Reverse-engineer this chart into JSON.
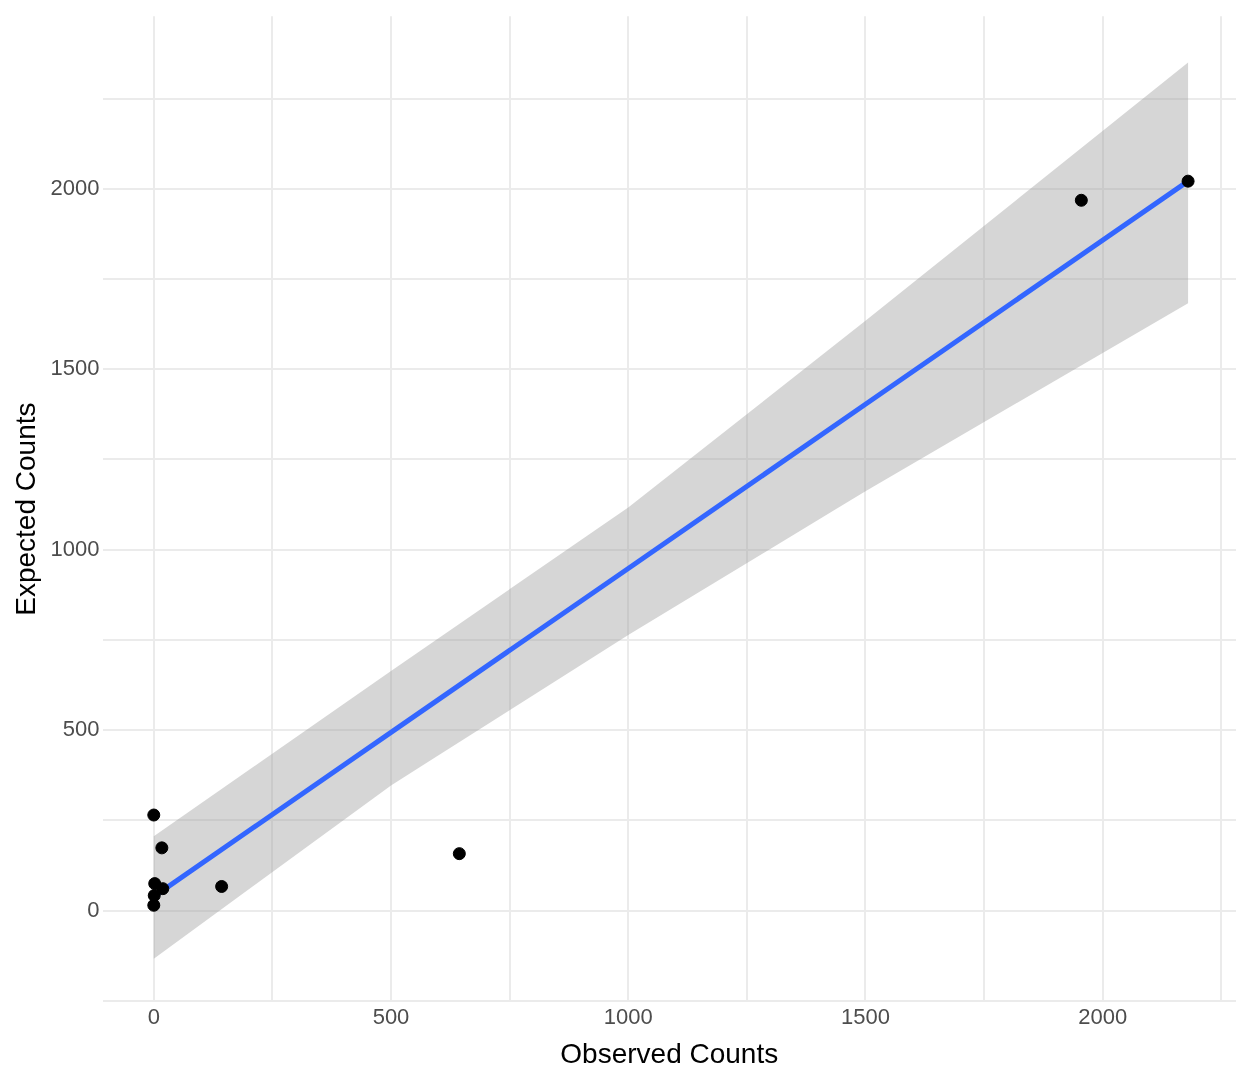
{
  "chart_data": {
    "type": "scatter",
    "xlabel": "Observed Counts",
    "ylabel": "Expected Counts",
    "xlim": [
      -108,
      2281
    ],
    "ylim": [
      -253,
      2478
    ],
    "xticks": [
      0,
      {
        "value": 250,
        "label": null
      },
      500,
      {
        "value": 750,
        "label": null
      },
      1000,
      {
        "value": 1250,
        "label": null
      },
      1500,
      {
        "value": 1750,
        "label": null
      },
      2000,
      {
        "value": 2250,
        "label": null
      }
    ],
    "yticks": [
      {
        "value": -250,
        "label": null
      },
      0,
      {
        "value": 250,
        "label": null
      },
      500,
      {
        "value": 750,
        "label": null
      },
      1000,
      {
        "value": 1250,
        "label": null
      },
      1500,
      {
        "value": 1750,
        "label": null
      },
      2000,
      {
        "value": 2250,
        "label": null
      }
    ],
    "grid": true,
    "legend": false,
    "series": [
      {
        "marker": "circle",
        "color": "#000000",
        "x": [
          0,
          17,
          2,
          1,
          19,
          0,
          143,
          644,
          1955,
          2180
        ],
        "values": [
          265,
          174,
          75,
          42,
          61,
          15,
          67,
          158,
          1968,
          2021
        ]
      },
      {
        "type": "line",
        "marker": "none",
        "color": "#3366ff",
        "line_style": "solid",
        "x": [
          0,
          500,
          1000,
          1500,
          2180
        ],
        "values": [
          39,
          494,
          948,
          1403,
          2021
        ],
        "lower": [
          -133,
          347,
          764,
          1162,
          1683
        ],
        "upper": [
          206,
          664,
          1117,
          1634,
          2350
        ]
      }
    ]
  }
}
